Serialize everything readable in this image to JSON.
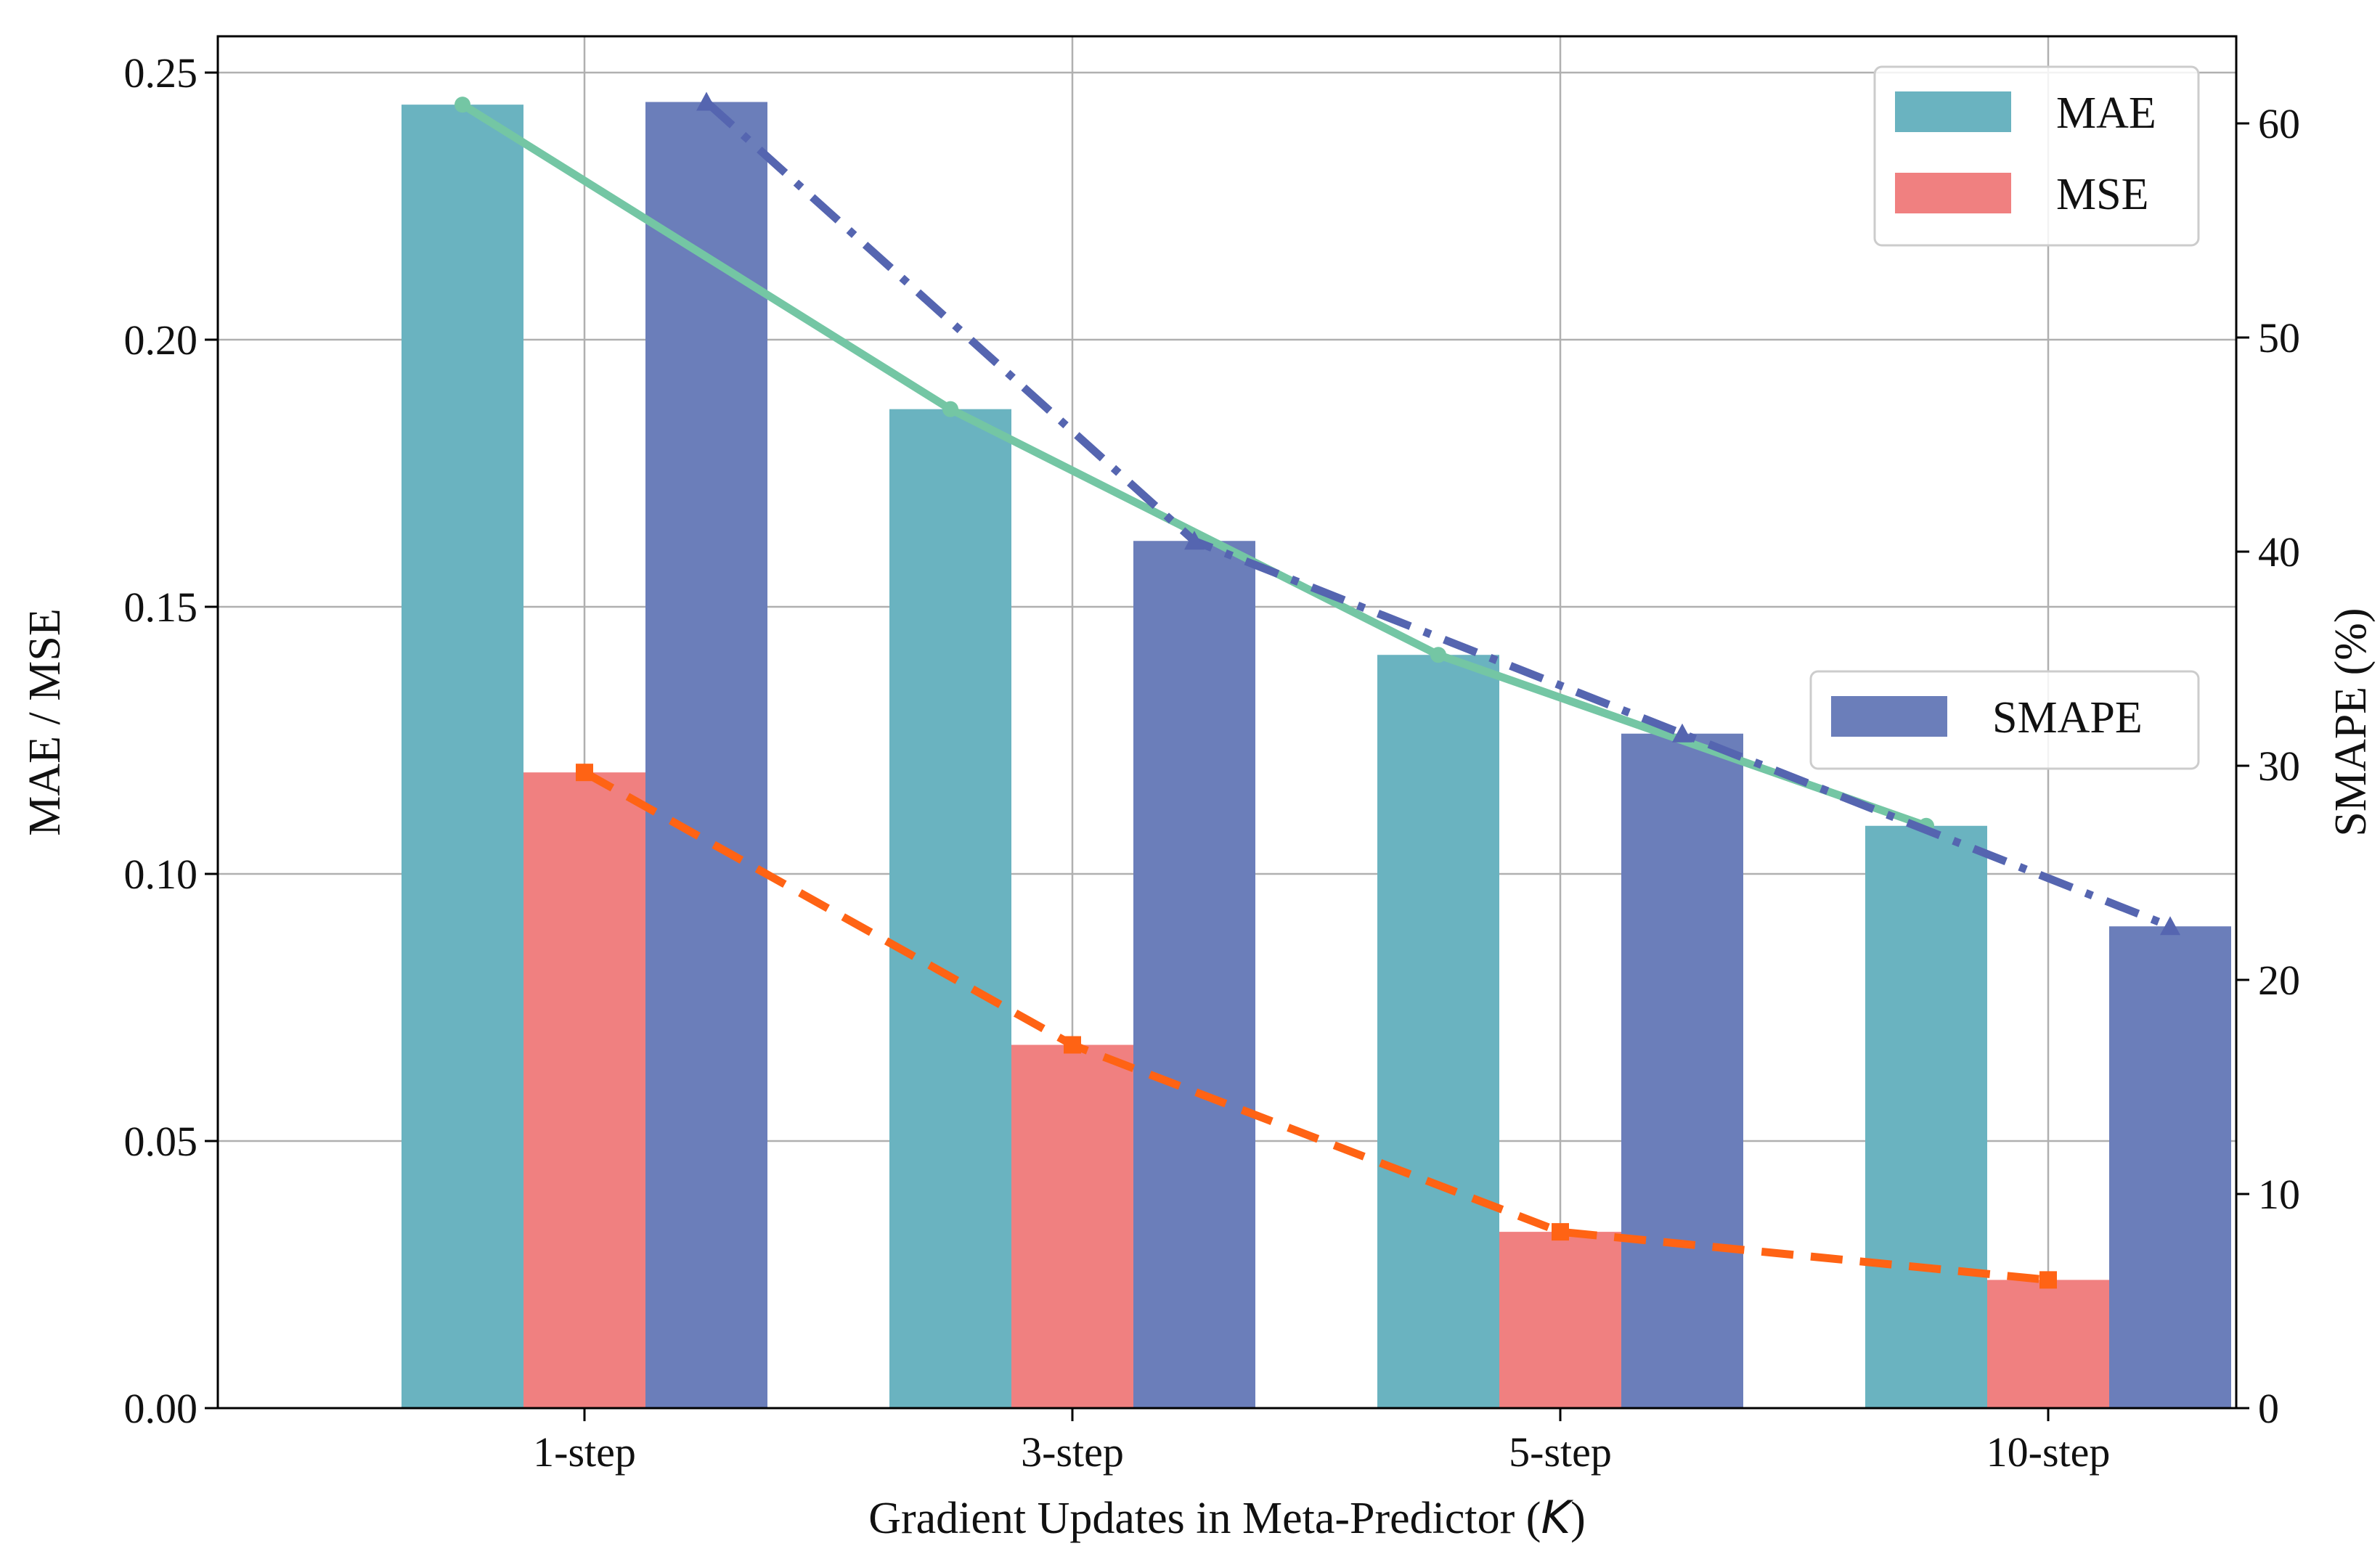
{
  "chart_data": {
    "type": "bar",
    "categories": [
      "1-step",
      "3-step",
      "5-step",
      "10-step"
    ],
    "xlabel": "Gradient Updates in Meta-Predictor (K)",
    "ylabel_left": "MAE / MSE",
    "ylabel_right": "SMAPE (%)",
    "ylim_left": [
      0,
      0.25
    ],
    "ylim_right": [
      0,
      60
    ],
    "yticks_left": [
      "0.00",
      "0.05",
      "0.10",
      "0.15",
      "0.20",
      "0.25"
    ],
    "yticks_right": [
      "0",
      "10",
      "20",
      "30",
      "40",
      "50",
      "60"
    ],
    "grid": true,
    "series": [
      {
        "name": "MAE",
        "axis": "left",
        "values": [
          0.244,
          0.187,
          0.141,
          0.109
        ],
        "bar_color": "#6ab3c0",
        "line_color": "#74c6a4",
        "line_style": "solid",
        "marker": "circle"
      },
      {
        "name": "MSE",
        "axis": "left",
        "values": [
          0.119,
          0.068,
          0.033,
          0.024
        ],
        "bar_color": "#f08080",
        "line_color": "#ff6314",
        "line_style": "dashed",
        "marker": "square"
      },
      {
        "name": "SMAPE",
        "axis": "right",
        "values": [
          61.0,
          40.5,
          31.5,
          22.5
        ],
        "bar_color": "#6b7eba",
        "line_color": "#5565b0",
        "line_style": "dashdot",
        "marker": "triangle"
      }
    ],
    "legends": [
      {
        "placement": "top-right",
        "entries": [
          "MAE",
          "MSE"
        ]
      },
      {
        "placement": "center-right",
        "entries": [
          "SMAPE"
        ]
      }
    ]
  }
}
